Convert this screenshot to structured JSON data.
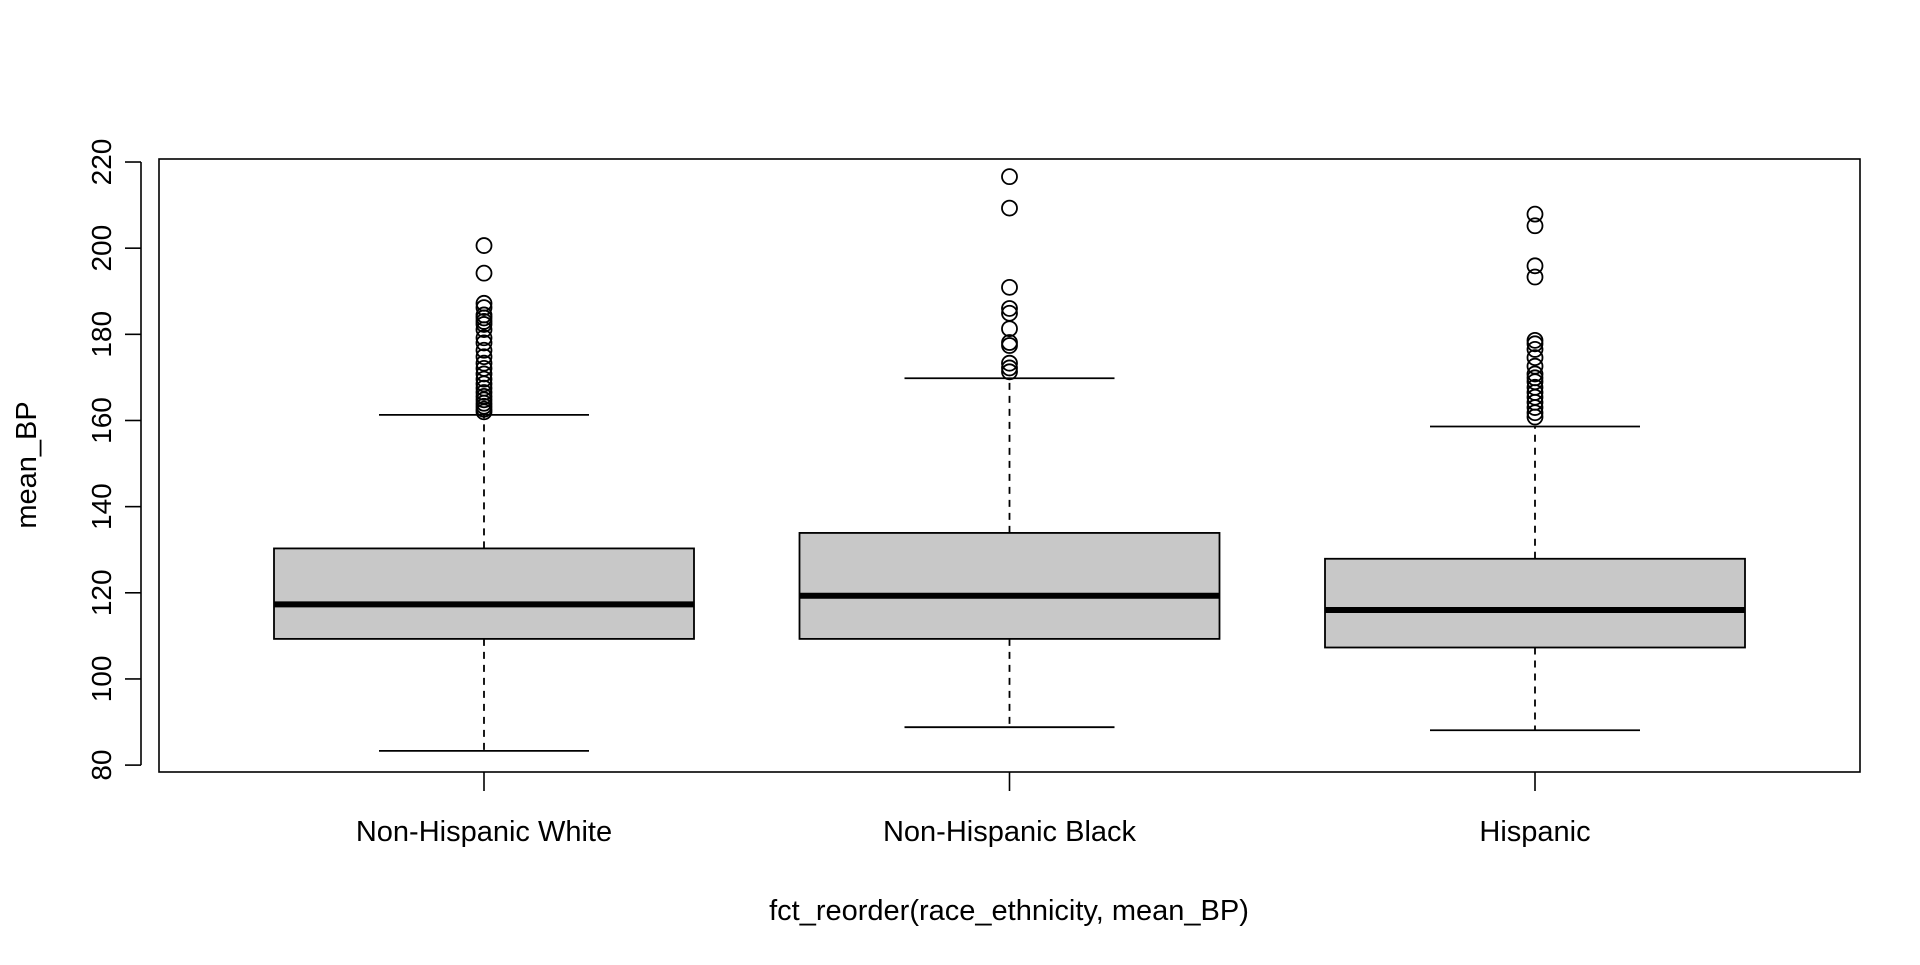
{
  "chart_data": {
    "type": "box",
    "title": "",
    "xlabel": "fct_reorder(race_ethnicity, mean_BP)",
    "ylabel": "mean_BP",
    "ylim": [
      78.4,
      220.7
    ],
    "yticks": [
      80,
      100,
      120,
      140,
      160,
      180,
      200,
      220
    ],
    "grid": false,
    "box_fill": "#c8c8c8",
    "line_color": "#000000",
    "categories": [
      "Non-Hispanic White",
      "Non-Hispanic Black",
      "Hispanic"
    ],
    "boxes": [
      {
        "category": "Non-Hispanic White",
        "whisker_low": 83.3,
        "q1": 109.3,
        "median": 117.3,
        "q3": 130.3,
        "whisker_high": 161.3,
        "outliers": [
          162.0,
          162.6,
          163.3,
          164.0,
          164.8,
          165.6,
          166.5,
          167.5,
          168.5,
          169.6,
          170.8,
          172.1,
          173.3,
          174.8,
          176.3,
          178.0,
          179.2,
          181.1,
          182.3,
          183.0,
          183.8,
          184.5,
          186.2,
          187.2,
          194.2,
          200.6
        ]
      },
      {
        "category": "Non-Hispanic Black",
        "whisker_low": 88.8,
        "q1": 109.3,
        "median": 119.3,
        "q3": 133.9,
        "whisker_high": 169.8,
        "outliers": [
          171.3,
          172.2,
          173.3,
          177.4,
          178.1,
          181.3,
          184.9,
          186.0,
          190.9,
          209.3,
          216.6
        ]
      },
      {
        "category": "Hispanic",
        "whisker_low": 88.1,
        "q1": 107.3,
        "median": 116.0,
        "q3": 127.9,
        "whisker_high": 158.6,
        "outliers": [
          160.8,
          161.8,
          163.0,
          164.2,
          165.4,
          166.5,
          167.7,
          169.0,
          169.9,
          170.8,
          172.6,
          174.6,
          176.5,
          177.8,
          178.6,
          193.3,
          195.9,
          205.2,
          207.9
        ]
      }
    ]
  }
}
